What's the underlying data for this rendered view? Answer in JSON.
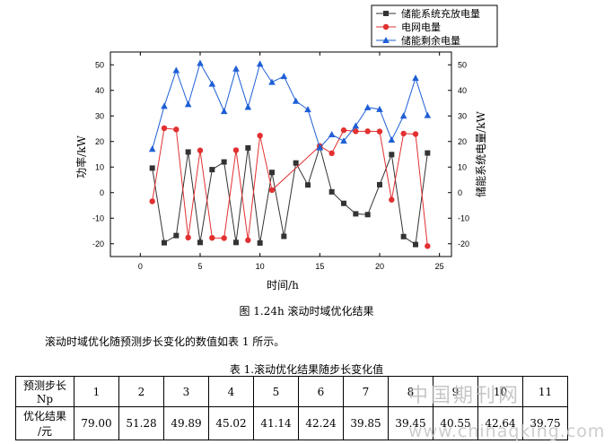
{
  "chart_data": {
    "type": "line",
    "legend_placement": "top-right",
    "xlabel": "时间/h",
    "ylabel_left": "功率/kW",
    "ylabel_right": "储能系统电量/kW",
    "xlim": [
      -2.5,
      26
    ],
    "ylim": [
      -25,
      55
    ],
    "x_ticks": [
      0,
      5,
      10,
      15,
      20,
      25
    ],
    "y_ticks": [
      -20,
      -10,
      0,
      10,
      20,
      30,
      40,
      50
    ],
    "colors": {
      "black": "#333333",
      "red": "#e23030",
      "blue": "#1f5fd6"
    },
    "series": [
      {
        "name": "储能系统充放电量",
        "color": "#333333",
        "marker": "square",
        "x": [
          1,
          2,
          3,
          4,
          5,
          6,
          7,
          8,
          9,
          10,
          11,
          12,
          13,
          14,
          15,
          16,
          17,
          18,
          19,
          20,
          21,
          22,
          23,
          24
        ],
        "values": [
          9.6,
          -19.6,
          -16.8,
          15.9,
          -19.5,
          9.0,
          12.0,
          -19.5,
          17.5,
          -19.7,
          7.9,
          -17.1,
          11.6,
          3.0,
          17.9,
          0.3,
          -4.2,
          -8.3,
          -8.6,
          3.1,
          14.9,
          -17.2,
          -20.3,
          15.5
        ]
      },
      {
        "name": "电网电量",
        "color": "#e23030",
        "marker": "circle",
        "x": [
          1,
          2,
          3,
          4,
          5,
          6,
          7,
          8,
          9,
          10,
          11,
          15,
          16,
          17,
          18,
          19,
          20,
          21,
          22,
          23,
          24
        ],
        "values": [
          -3.4,
          25.2,
          24.7,
          -17.6,
          16.5,
          -17.7,
          -17.8,
          16.6,
          -18.6,
          22.3,
          1.0,
          18.2,
          15.4,
          24.4,
          24.0,
          24.0,
          23.9,
          -2.8,
          23.1,
          22.9,
          -20.9
        ]
      },
      {
        "name": "储能剩余电量",
        "color": "#1f5fd6",
        "marker": "triangle",
        "x": [
          1,
          2,
          3,
          4,
          5,
          6,
          7,
          8,
          9,
          10,
          11,
          12,
          13,
          14,
          15,
          16,
          17,
          18,
          19,
          20,
          21,
          22,
          23,
          24
        ],
        "values": [
          17.0,
          33.8,
          47.8,
          34.5,
          50.6,
          42.5,
          31.8,
          48.4,
          33.4,
          50.3,
          43.2,
          45.5,
          35.8,
          32.5,
          17.6,
          22.7,
          20.2,
          26.1,
          33.3,
          32.6,
          20.6,
          30.0,
          44.8,
          30.2
        ]
      }
    ]
  },
  "figure_caption": "图 1.24h 滚动时域优化结果",
  "paragraph": "滚动时域优化随预测步长变化的数值如表 1 所示。",
  "table_caption": "表 1.滚动优化结果随步长变化值",
  "table": {
    "row1_label_line1": "预测步长",
    "row1_label_line2": "Np",
    "steps": [
      "1",
      "2",
      "3",
      "4",
      "5",
      "6",
      "7",
      "8",
      "9",
      "10",
      "11"
    ],
    "row2_label_line1": "优化结果",
    "row2_label_line2": "/元",
    "results": [
      "79.00",
      "51.28",
      "49.89",
      "45.02",
      "41.14",
      "42.24",
      "39.85",
      "39.45",
      "40.55",
      "42.64",
      "39.75"
    ]
  },
  "watermark_cn": "中国期刊网",
  "watermark_url": "www.chinaqking.com"
}
